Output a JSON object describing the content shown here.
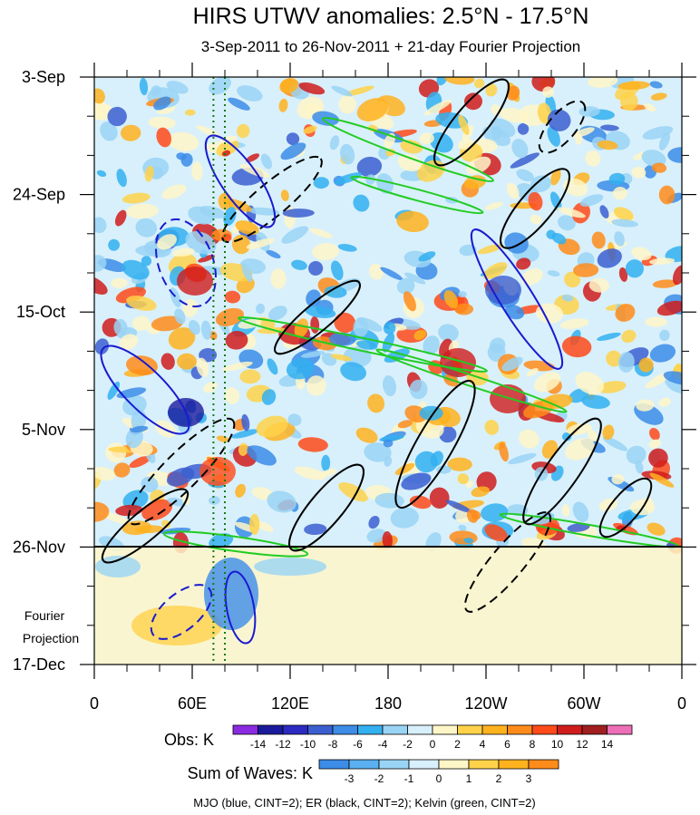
{
  "chart_data": {
    "type": "heatmap",
    "title": "HIRS UTWV anomalies: 2.5°N - 17.5°N",
    "subtitle": "3-Sep-2011 to 26-Nov-2011 + 21-day Fourier Projection",
    "y_tick_labels": [
      "3-Sep",
      "24-Sep",
      "15-Oct",
      "5-Nov",
      "26-Nov",
      "17-Dec"
    ],
    "y_tick_days": [
      0,
      21,
      42,
      63,
      84,
      105
    ],
    "x_tick_labels": [
      "0",
      "60E",
      "120E",
      "180",
      "120W",
      "60W",
      "0"
    ],
    "x_tick_lons": [
      0,
      60,
      120,
      180,
      240,
      300,
      360
    ],
    "projection_start_day": 84,
    "projection_label_line1": "Fourier",
    "projection_label_line2": "Projection",
    "reference_lons": [
      73,
      80
    ],
    "obs_legend": {
      "label": "Obs: K",
      "levels": [
        "-14",
        "-12",
        "-10",
        "-8",
        "-6",
        "-4",
        "-2",
        "0",
        "2",
        "4",
        "6",
        "8",
        "10",
        "12",
        "14"
      ],
      "colors": [
        "#8a2be2",
        "#1a1a9c",
        "#2b2bc2",
        "#3c5fd0",
        "#3c8ce8",
        "#33b0f0",
        "#9ad4f5",
        "#d8f0fb",
        "#fff6c8",
        "#ffd24a",
        "#ffb21e",
        "#ff8c1a",
        "#ff4a1a",
        "#d01c1c",
        "#a01e1e",
        "#ee6fb8"
      ]
    },
    "waves_legend": {
      "label": "Sum of Waves: K",
      "levels": [
        "-3",
        "-2",
        "-1",
        "0",
        "1",
        "2",
        "3"
      ],
      "colors": [
        "#3c8ce8",
        "#5ab0f0",
        "#9ad4f5",
        "#d8f0fb",
        "#fff6c8",
        "#ffd24a",
        "#ffb21e",
        "#ff8c1a"
      ]
    },
    "footnote": "MJO (blue, CINT=2); ER (black, CINT=2); Kelvin (green, CINT=2)"
  }
}
